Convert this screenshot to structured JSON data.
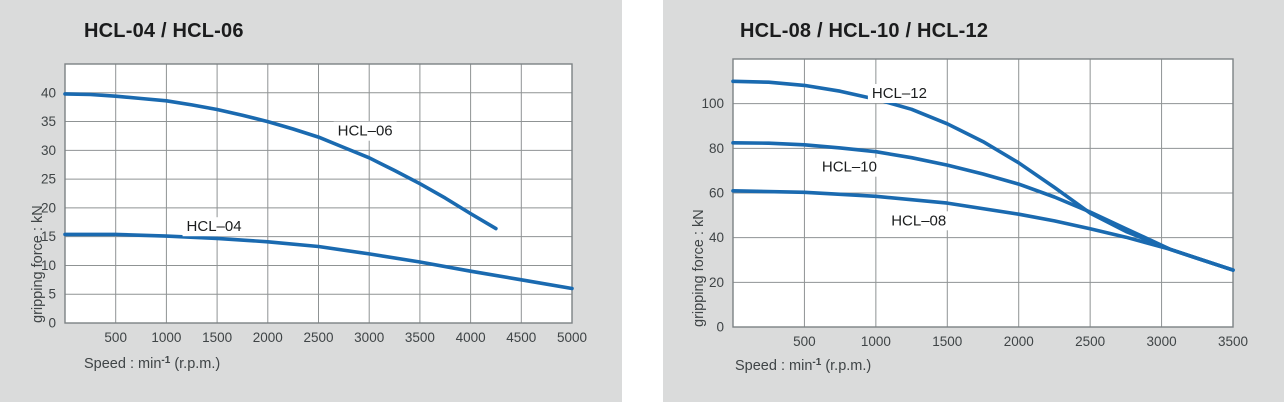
{
  "colors": {
    "panel_bg": "#dadbdb",
    "plot_bg": "#ffffff",
    "grid": "#8f9394",
    "border": "#7c8284",
    "curve": "#1a6ab0",
    "title_text": "#1b1c1d",
    "axis_text": "#3f4446"
  },
  "chart_data": [
    {
      "type": "line",
      "title": "HCL-04 / HCL-06",
      "ylabel": "gripping force : kN",
      "xlabel_prefix": "Speed : min",
      "xlabel_sup": "-1",
      "xlabel_suffix": " (r.p.m.)",
      "x_max": 5000,
      "y_max": 45,
      "x_grid_step": 500,
      "y_grid_step": 5,
      "x_ticks": [
        500,
        1000,
        1500,
        2000,
        2500,
        3000,
        3500,
        4000,
        4500,
        5000
      ],
      "y_ticks": [
        0,
        5,
        10,
        15,
        20,
        25,
        30,
        35,
        40
      ],
      "grid": true,
      "legend_position": "inline-labels",
      "series": [
        {
          "name": "HCL-06",
          "label": "HCL–06",
          "label_pos": [
            2960,
            33.5
          ],
          "points": [
            [
              0,
              39.8
            ],
            [
              250,
              39.7
            ],
            [
              500,
              39.4
            ],
            [
              750,
              39.0
            ],
            [
              1000,
              38.6
            ],
            [
              1250,
              37.9
            ],
            [
              1500,
              37.1
            ],
            [
              1750,
              36.1
            ],
            [
              2000,
              35.0
            ],
            [
              2250,
              33.7
            ],
            [
              2500,
              32.3
            ],
            [
              2750,
              30.5
            ],
            [
              3000,
              28.7
            ],
            [
              3250,
              26.5
            ],
            [
              3500,
              24.2
            ],
            [
              3750,
              21.7
            ],
            [
              4000,
              19.0
            ],
            [
              4250,
              16.4
            ]
          ]
        },
        {
          "name": "HCL-04",
          "label": "HCL–04",
          "label_pos": [
            1470,
            16.9
          ],
          "points": [
            [
              0,
              15.4
            ],
            [
              500,
              15.4
            ],
            [
              1000,
              15.1
            ],
            [
              1500,
              14.7
            ],
            [
              2000,
              14.1
            ],
            [
              2500,
              13.3
            ],
            [
              3000,
              12.0
            ],
            [
              3500,
              10.6
            ],
            [
              4000,
              9.0
            ],
            [
              4500,
              7.5
            ],
            [
              5000,
              6.0
            ]
          ]
        }
      ]
    },
    {
      "type": "line",
      "title": "HCL-08 / HCL-10 / HCL-12",
      "ylabel": "gripping force : kN",
      "xlabel_prefix": "Speed : min",
      "xlabel_sup": "-1",
      "xlabel_suffix": " (r.p.m.)",
      "x_max": 3500,
      "y_max": 120,
      "x_grid_step": 500,
      "y_grid_step": 20,
      "x_ticks": [
        500,
        1000,
        1500,
        2000,
        2500,
        3000,
        3500
      ],
      "y_ticks": [
        0,
        20,
        40,
        60,
        80,
        100
      ],
      "grid": true,
      "legend_position": "inline-labels",
      "series": [
        {
          "name": "HCL-12",
          "label": "HCL–12",
          "label_pos": [
            1165,
            105
          ],
          "points": [
            [
              0,
              110
            ],
            [
              250,
              109.6
            ],
            [
              500,
              108.2
            ],
            [
              750,
              105.6
            ],
            [
              1000,
              102
            ],
            [
              1250,
              97.5
            ],
            [
              1500,
              91
            ],
            [
              1750,
              83
            ],
            [
              2000,
              73.5
            ],
            [
              2250,
              62.5
            ],
            [
              2500,
              51
            ],
            [
              2750,
              42.8
            ],
            [
              3060,
              34.8
            ],
            [
              3500,
              25.5
            ]
          ]
        },
        {
          "name": "HCL-10",
          "label": "HCL–10",
          "label_pos": [
            815,
            72
          ],
          "points": [
            [
              0,
              82.5
            ],
            [
              250,
              82.3
            ],
            [
              500,
              81.6
            ],
            [
              750,
              80.2
            ],
            [
              1000,
              78.5
            ],
            [
              1250,
              75.8
            ],
            [
              1500,
              72.5
            ],
            [
              1750,
              68.5
            ],
            [
              2000,
              64
            ],
            [
              2250,
              58.2
            ],
            [
              2500,
              51.5
            ],
            [
              2750,
              44
            ],
            [
              3060,
              34.8
            ],
            [
              3500,
              25.5
            ]
          ]
        },
        {
          "name": "HCL-08",
          "label": "HCL–08",
          "label_pos": [
            1300,
            48
          ],
          "points": [
            [
              0,
              61
            ],
            [
              500,
              60.3
            ],
            [
              1000,
              58.5
            ],
            [
              1500,
              55.5
            ],
            [
              2000,
              50.5
            ],
            [
              2250,
              47.5
            ],
            [
              2500,
              44
            ],
            [
              2750,
              40.2
            ],
            [
              3060,
              34.8
            ],
            [
              3250,
              30.7
            ],
            [
              3500,
              25.5
            ]
          ]
        }
      ]
    }
  ]
}
